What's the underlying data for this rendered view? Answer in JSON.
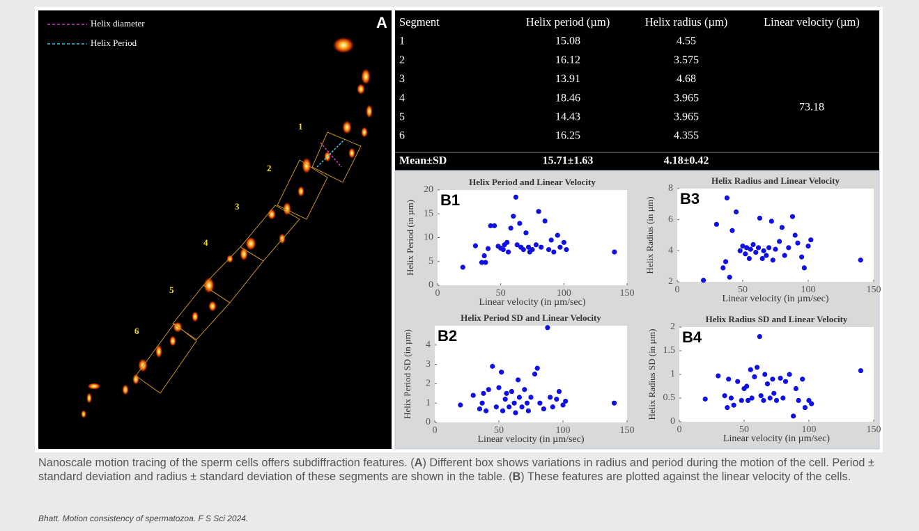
{
  "panel_a": {
    "panel_letter": "A",
    "legend": [
      "Helix diameter",
      "Helix Period"
    ],
    "segments": [
      "1",
      "2",
      "3",
      "4",
      "5",
      "6"
    ]
  },
  "table": {
    "headers": [
      "Segment",
      "Helix period (µm)",
      "Helix radius (µm)",
      "Linear velocity (µm)"
    ],
    "rows": [
      [
        "1",
        "15.08",
        "4.55"
      ],
      [
        "2",
        "16.12",
        "3.575"
      ],
      [
        "3",
        "13.91",
        "4.68"
      ],
      [
        "4",
        "18.46",
        "3.965"
      ],
      [
        "5",
        "14.43",
        "3.965"
      ],
      [
        "6",
        "16.25",
        "4.355"
      ]
    ],
    "merged_cell": "73.18",
    "footer": [
      "Mean±SD",
      "15.71±1.63",
      "4.18±0.42"
    ]
  },
  "chart_data": [
    {
      "type": "scatter",
      "panel_label": "B1",
      "title": "Helix Period and Linear Velocity",
      "xlabel": "Linear velocity (in µm/sec)",
      "ylabel": "Helix Period (in µm)",
      "x": [
        20,
        30,
        35,
        37,
        38,
        40,
        42,
        45,
        48,
        50,
        52,
        53,
        55,
        56,
        58,
        60,
        62,
        63,
        65,
        66,
        68,
        70,
        72,
        73,
        75,
        78,
        80,
        82,
        85,
        88,
        90,
        92,
        95,
        97,
        100,
        102,
        140
      ],
      "values": [
        3.8,
        8.3,
        4.8,
        6.2,
        4.8,
        7.7,
        12.5,
        12.5,
        8.2,
        7.8,
        7.5,
        8.5,
        9.0,
        7.0,
        12.0,
        14.5,
        18.5,
        8.5,
        13.0,
        8.0,
        7.5,
        11.0,
        8.0,
        7.0,
        7.5,
        8.5,
        15.5,
        8.0,
        13.5,
        7.5,
        9.5,
        7.0,
        10.5,
        8.0,
        9.0,
        7.5,
        7.0
      ],
      "color": "#1010e0",
      "xlim": [
        0,
        150
      ],
      "xticks": [
        0,
        50,
        100,
        150
      ],
      "ylim": [
        0,
        20
      ],
      "yticks": [
        0,
        5,
        10,
        15,
        20
      ]
    },
    {
      "type": "scatter",
      "panel_label": "B2",
      "title": "Helix Period SD and Linear Velocity",
      "xlabel": "Linear velocity (in µm/sec)",
      "ylabel": "Helix Period SD (in µm)",
      "x": [
        20,
        30,
        35,
        37,
        38,
        40,
        42,
        45,
        48,
        50,
        52,
        53,
        55,
        56,
        58,
        60,
        62,
        63,
        65,
        66,
        68,
        70,
        72,
        73,
        75,
        78,
        80,
        82,
        85,
        88,
        90,
        92,
        95,
        97,
        100,
        102,
        140
      ],
      "values": [
        0.9,
        1.4,
        0.7,
        1.0,
        1.5,
        0.6,
        1.7,
        2.9,
        0.8,
        1.8,
        2.6,
        0.6,
        1.2,
        1.5,
        0.8,
        1.6,
        1.0,
        0.5,
        2.2,
        1.3,
        0.8,
        1.7,
        1.0,
        0.6,
        1.3,
        2.5,
        2.8,
        1.0,
        0.7,
        4.9,
        1.3,
        0.8,
        1.2,
        1.6,
        0.9,
        1.1,
        1.0
      ],
      "color": "#1010e0",
      "xlim": [
        0,
        150
      ],
      "xticks": [
        0,
        50,
        100,
        150
      ],
      "ylim": [
        0,
        5
      ],
      "yticks": [
        0,
        1,
        2,
        3,
        4
      ]
    },
    {
      "type": "scatter",
      "panel_label": "B3",
      "title": "Helix Radius and Linear Velocity",
      "xlabel": "Linear velocity (in µm/sec)",
      "ylabel": "Helix Radius (in µm)",
      "x": [
        20,
        30,
        35,
        37,
        38,
        40,
        42,
        45,
        48,
        50,
        52,
        53,
        55,
        56,
        58,
        60,
        62,
        63,
        65,
        66,
        68,
        70,
        72,
        73,
        75,
        78,
        80,
        82,
        85,
        88,
        90,
        92,
        95,
        97,
        100,
        102,
        140
      ],
      "values": [
        2.1,
        5.7,
        2.9,
        3.3,
        7.4,
        2.3,
        5.3,
        6.5,
        4.0,
        4.3,
        3.8,
        4.2,
        3.5,
        4.1,
        4.4,
        3.9,
        4.2,
        6.1,
        3.5,
        4.0,
        3.7,
        4.2,
        5.9,
        3.4,
        4.1,
        4.6,
        5.5,
        3.7,
        4.2,
        6.2,
        5.0,
        4.5,
        3.6,
        2.9,
        4.3,
        4.7,
        3.4
      ],
      "color": "#1010e0",
      "xlim": [
        0,
        150
      ],
      "xticks": [
        0,
        50,
        100,
        150
      ],
      "ylim": [
        2,
        8
      ],
      "yticks": [
        2,
        4,
        6,
        8
      ]
    },
    {
      "type": "scatter",
      "panel_label": "B4",
      "title": "Helix Radius SD and Linear Velocity",
      "xlabel": "Linear velocity (in µm/sec)",
      "ylabel": "Helix Radius SD (in µm)",
      "x": [
        20,
        30,
        35,
        37,
        38,
        40,
        42,
        45,
        48,
        50,
        52,
        53,
        55,
        56,
        58,
        60,
        62,
        63,
        65,
        66,
        68,
        70,
        72,
        73,
        75,
        78,
        80,
        82,
        85,
        88,
        90,
        92,
        95,
        97,
        100,
        102,
        140
      ],
      "values": [
        0.48,
        0.97,
        0.55,
        0.3,
        0.9,
        0.5,
        0.35,
        0.85,
        0.45,
        0.7,
        0.75,
        0.45,
        1.1,
        0.5,
        0.95,
        1.15,
        1.8,
        0.55,
        0.45,
        1.0,
        0.8,
        0.5,
        0.9,
        0.6,
        0.45,
        0.92,
        0.5,
        0.85,
        1.0,
        0.12,
        0.7,
        0.45,
        0.9,
        0.3,
        0.45,
        0.38,
        1.08
      ],
      "color": "#1010e0",
      "xlim": [
        0,
        150
      ],
      "xticks": [
        0,
        50,
        100,
        150
      ],
      "ylim": [
        0,
        2
      ],
      "yticks": [
        0,
        0.5,
        1,
        1.5,
        2
      ]
    }
  ],
  "caption": {
    "parts": [
      "Nanoscale motion tracing of the sperm cells offers subdiffraction features. (",
      "A",
      ") Different box shows variations in radius and period during the motion of the cell. Period ± standard deviation and radius ± standard deviation of these segments are shown in the table. (",
      "B",
      ") These features are plotted against the linear velocity of the cells."
    ],
    "citation": "Bhatt. Motion consistency of spermatozoa. F S Sci 2024."
  }
}
